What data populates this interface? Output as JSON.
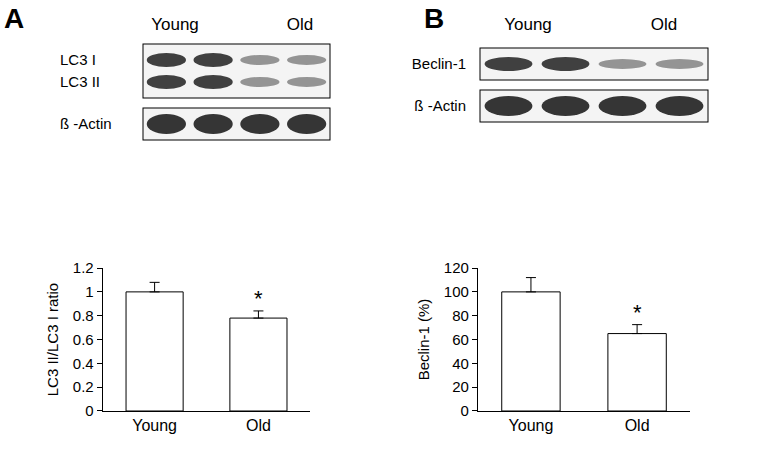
{
  "chart_data": [
    {
      "type": "bar",
      "categories": [
        "Young",
        "Old"
      ],
      "values": [
        1.0,
        0.78
      ],
      "errors": [
        0.08,
        0.06
      ],
      "color": "#ffffff",
      "y_label": "LC3 II/LC3 I ratio",
      "ylim": [
        0,
        1.2
      ],
      "yticks": [
        0,
        0.2,
        0.4,
        0.6,
        0.8,
        1,
        1.2
      ],
      "grid": false,
      "annotations": [
        {
          "text": "*",
          "category": "Old"
        }
      ]
    },
    {
      "type": "bar",
      "categories": [
        "Young",
        "Old"
      ],
      "values": [
        100,
        65
      ],
      "errors": [
        12,
        7.5
      ],
      "color": "#ffffff",
      "y_label": "Beclin-1 (%)",
      "ylim": [
        0,
        120
      ],
      "yticks": [
        0,
        20,
        40,
        60,
        80,
        100,
        120
      ],
      "grid": false,
      "annotations": [
        {
          "text": "*",
          "category": "Old"
        }
      ]
    }
  ],
  "panels": [
    {
      "label": "A",
      "groups": [
        "Young",
        "Old"
      ],
      "blots": [
        [
          "LC3 I",
          "LC3 II"
        ],
        [
          "ß -Actin"
        ]
      ]
    },
    {
      "label": "B",
      "groups": [
        "Young",
        "Old"
      ],
      "blots": [
        [
          "Beclin-1"
        ],
        [
          "ß -Actin"
        ]
      ]
    }
  ]
}
